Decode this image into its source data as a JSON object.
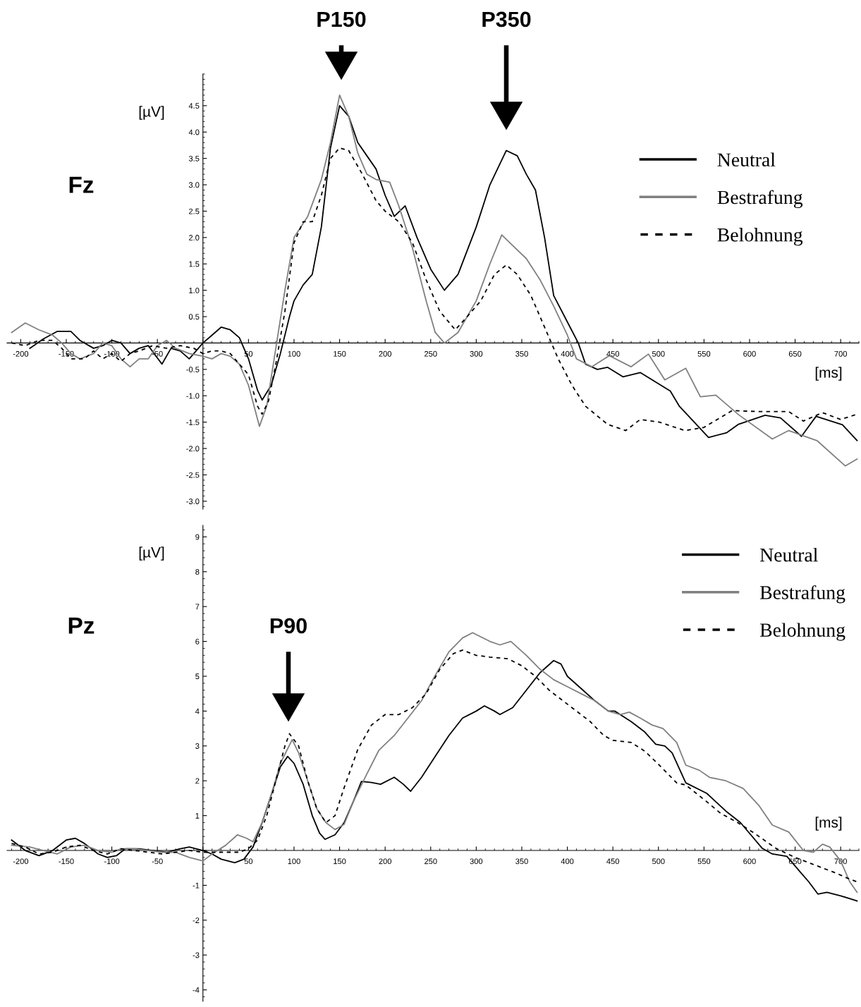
{
  "chart_data": [
    {
      "type": "line",
      "title": "Fz",
      "xlabel": "[ms]",
      "ylabel": "[µV]",
      "legend": "top right",
      "grid": false,
      "xlim": [
        -215,
        720
      ],
      "ylim": [
        -3.15,
        5.1
      ],
      "xticks": [
        -200,
        -150,
        -100,
        -50,
        {
          "value": 0,
          "label": null
        },
        50,
        100,
        150,
        200,
        250,
        300,
        350,
        400,
        450,
        500,
        550,
        600,
        650,
        700
      ],
      "yticks": [
        {
          "value": -3,
          "label": "-3.0"
        },
        -2.5,
        {
          "value": -2,
          "label": "-2.0"
        },
        -1.5,
        {
          "value": -1,
          "label": "-1.0"
        },
        -0.5,
        {
          "value": 0,
          "label": null
        },
        0.5,
        {
          "value": 1,
          "label": "1.0"
        },
        1.5,
        {
          "value": 2,
          "label": "2.0"
        },
        2.5,
        {
          "value": 3,
          "label": "3.0"
        },
        3.5,
        {
          "value": 4,
          "label": "4.0"
        },
        4.5
      ],
      "annotations": [
        "P150",
        "P350"
      ],
      "series": [
        {
          "name": "Neutral",
          "color": "#000000",
          "line_style": "solid",
          "x": [
            -190,
            -175,
            -160,
            -145,
            -135,
            -120,
            -110,
            -100,
            -90,
            -80,
            -70,
            -60,
            -45,
            -35,
            -25,
            -15,
            0,
            10,
            20,
            30,
            40,
            50,
            60,
            65,
            75,
            85,
            95,
            100,
            110,
            120,
            130,
            140,
            150,
            160,
            170,
            190,
            200,
            210,
            222,
            235,
            250,
            265,
            280,
            300,
            315,
            333,
            345,
            355,
            365,
            375,
            385,
            400,
            412,
            420,
            433,
            444,
            461,
            480,
            513,
            523,
            555,
            575,
            588,
            617,
            634,
            657,
            673,
            702,
            718
          ],
          "values": [
            -0.1,
            0.08,
            0.22,
            0.22,
            0.05,
            -0.1,
            -0.05,
            0.05,
            0.0,
            -0.2,
            -0.1,
            -0.05,
            -0.4,
            -0.1,
            -0.15,
            -0.3,
            0.0,
            0.15,
            0.3,
            0.25,
            0.1,
            -0.3,
            -0.9,
            -1.08,
            -0.8,
            -0.2,
            0.5,
            0.8,
            1.1,
            1.3,
            2.2,
            3.7,
            4.5,
            4.3,
            3.8,
            3.3,
            2.8,
            2.4,
            2.6,
            2.0,
            1.4,
            1.0,
            1.3,
            2.2,
            3.0,
            3.65,
            3.55,
            3.2,
            2.9,
            2.0,
            0.9,
            0.4,
            0.0,
            -0.4,
            -0.5,
            -0.46,
            -0.64,
            -0.56,
            -0.91,
            -1.2,
            -1.79,
            -1.7,
            -1.54,
            -1.37,
            -1.42,
            -1.77,
            -1.39,
            -1.55,
            -1.85
          ]
        },
        {
          "name": "Bestrafung",
          "color": "#808080",
          "line_style": "solid",
          "x": [
            -210,
            -195,
            -180,
            -165,
            -155,
            -145,
            -135,
            -120,
            -110,
            -100,
            -90,
            -80,
            -70,
            -60,
            -50,
            -40,
            -30,
            -15,
            0,
            10,
            20,
            30,
            40,
            50,
            62,
            70,
            80,
            90,
            100,
            115,
            130,
            140,
            150,
            160,
            170,
            180,
            190,
            205,
            215,
            230,
            245,
            255,
            265,
            280,
            300,
            315,
            328,
            340,
            355,
            370,
            385,
            400,
            410,
            427,
            446,
            470,
            489,
            507,
            530,
            546,
            563,
            588,
            625,
            643,
            674,
            705,
            718
          ],
          "values": [
            0.2,
            0.38,
            0.25,
            0.15,
            0.0,
            -0.2,
            -0.3,
            -0.2,
            0.0,
            -0.05,
            -0.3,
            -0.45,
            -0.3,
            -0.3,
            -0.05,
            0.05,
            -0.1,
            -0.2,
            -0.25,
            -0.3,
            -0.2,
            -0.25,
            -0.4,
            -0.8,
            -1.58,
            -1.2,
            -0.1,
            1.0,
            2.0,
            2.4,
            3.1,
            3.8,
            4.7,
            4.3,
            3.6,
            3.2,
            3.1,
            3.05,
            2.6,
            1.8,
            0.8,
            0.2,
            0.0,
            0.2,
            0.8,
            1.5,
            2.05,
            1.85,
            1.6,
            1.2,
            0.7,
            0.15,
            -0.3,
            -0.45,
            -0.24,
            -0.45,
            -0.21,
            -0.7,
            -0.48,
            -1.02,
            -0.99,
            -1.36,
            -1.82,
            -1.66,
            -1.85,
            -2.33,
            -2.2
          ]
        },
        {
          "name": "Belohnung",
          "color": "#000000",
          "line_style": "dashed",
          "x": [
            -210,
            -195,
            -180,
            -165,
            -155,
            -145,
            -130,
            -120,
            -110,
            -100,
            -90,
            -80,
            -70,
            -55,
            -40,
            -25,
            -10,
            0,
            10,
            20,
            30,
            40,
            50,
            60,
            65,
            72,
            80,
            90,
            100,
            110,
            120,
            130,
            140,
            150,
            160,
            175,
            190,
            200,
            215,
            230,
            245,
            260,
            277,
            290,
            305,
            320,
            333,
            345,
            360,
            375,
            390,
            405,
            420,
            444,
            464,
            480,
            501,
            529,
            550,
            581,
            609,
            643,
            659,
            680,
            700,
            718
          ],
          "values": [
            0.0,
            -0.05,
            0.05,
            0.05,
            -0.1,
            -0.3,
            -0.3,
            -0.15,
            -0.3,
            -0.2,
            -0.35,
            -0.2,
            -0.15,
            -0.05,
            -0.1,
            -0.05,
            -0.1,
            -0.2,
            -0.15,
            -0.15,
            -0.2,
            -0.4,
            -0.6,
            -1.2,
            -1.35,
            -1.1,
            -0.4,
            0.6,
            1.9,
            2.3,
            2.3,
            2.8,
            3.5,
            3.7,
            3.65,
            3.2,
            2.7,
            2.5,
            2.3,
            1.9,
            1.2,
            0.6,
            0.25,
            0.5,
            0.8,
            1.3,
            1.48,
            1.3,
            0.9,
            0.3,
            -0.3,
            -0.8,
            -1.2,
            -1.54,
            -1.66,
            -1.45,
            -1.5,
            -1.66,
            -1.6,
            -1.28,
            -1.3,
            -1.3,
            -1.48,
            -1.32,
            -1.45,
            -1.35
          ]
        }
      ]
    },
    {
      "type": "line",
      "title": "Pz",
      "xlabel": "[ms]",
      "ylabel": "[µV]",
      "legend": "top right",
      "grid": false,
      "xlim": [
        -215,
        720
      ],
      "ylim": [
        -4.33,
        9.33
      ],
      "xticks": [
        -200,
        -150,
        -100,
        -50,
        {
          "value": 0,
          "label": null
        },
        50,
        100,
        150,
        200,
        250,
        300,
        350,
        400,
        450,
        500,
        550,
        600,
        650,
        700
      ],
      "yticks": [
        -4,
        -3,
        -2,
        -1,
        {
          "value": 0,
          "label": null
        },
        1,
        2,
        3,
        4,
        5,
        6,
        7,
        8,
        9
      ],
      "annotations": [
        "P90"
      ],
      "series": [
        {
          "name": "Neutral",
          "color": "#000000",
          "line_style": "solid",
          "x": [
            -210,
            -195,
            -180,
            -165,
            -150,
            -140,
            -130,
            -115,
            -105,
            -95,
            -85,
            -70,
            -55,
            -40,
            -25,
            -15,
            0,
            10,
            20,
            35,
            45,
            55,
            65,
            75,
            85,
            93,
            100,
            110,
            120,
            128,
            134,
            145,
            155,
            165,
            174,
            185,
            195,
            210,
            220,
            228,
            240,
            255,
            270,
            285,
            300,
            309,
            320,
            326,
            340,
            355,
            370,
            385,
            393,
            400,
            415,
            430,
            445,
            452,
            470,
            485,
            497,
            507,
            515,
            530,
            553,
            574,
            590,
            614,
            625,
            641,
            655,
            665,
            675,
            685,
            700,
            712,
            718
          ],
          "values": [
            0.3,
            0.0,
            -0.15,
            0.0,
            0.3,
            0.35,
            0.2,
            -0.1,
            -0.2,
            -0.15,
            0.05,
            0.05,
            0.0,
            -0.05,
            0.05,
            0.1,
            0.0,
            -0.1,
            -0.25,
            -0.35,
            -0.25,
            0.1,
            0.8,
            1.6,
            2.4,
            2.7,
            2.5,
            1.9,
            1.0,
            0.5,
            0.32,
            0.45,
            0.8,
            1.4,
            1.98,
            1.95,
            1.9,
            2.1,
            1.9,
            1.7,
            2.1,
            2.7,
            3.3,
            3.8,
            4.0,
            4.15,
            4.0,
            3.9,
            4.1,
            4.6,
            5.1,
            5.45,
            5.35,
            5.0,
            4.65,
            4.3,
            4.0,
            4.0,
            3.7,
            3.4,
            3.05,
            3.0,
            2.8,
            1.94,
            1.64,
            1.13,
            0.8,
            0.06,
            -0.1,
            -0.17,
            -0.6,
            -0.9,
            -1.25,
            -1.2,
            -1.3,
            -1.4,
            -1.45
          ]
        },
        {
          "name": "Bestrafung",
          "color": "#808080",
          "line_style": "solid",
          "x": [
            -210,
            -190,
            -175,
            -160,
            -145,
            -130,
            -115,
            -100,
            -90,
            -75,
            -60,
            -45,
            -30,
            -15,
            0,
            10,
            25,
            38,
            48,
            55,
            65,
            75,
            85,
            98,
            105,
            115,
            125,
            135,
            145,
            155,
            165,
            180,
            193,
            210,
            225,
            240,
            254,
            270,
            285,
            296,
            315,
            326,
            338,
            355,
            370,
            385,
            400,
            415,
            430,
            445,
            458,
            468,
            480,
            493,
            505,
            520,
            530,
            545,
            556,
            574,
            593,
            610,
            625,
            643,
            659,
            670,
            680,
            688,
            700,
            710,
            718
          ],
          "values": [
            0.15,
            0.1,
            0.0,
            -0.1,
            0.1,
            0.15,
            0.0,
            -0.05,
            0.05,
            0.05,
            0.0,
            -0.05,
            -0.05,
            -0.2,
            -0.3,
            -0.1,
            0.15,
            0.45,
            0.35,
            0.25,
            0.8,
            1.6,
            2.5,
            3.18,
            2.8,
            2.0,
            1.2,
            0.8,
            0.6,
            0.75,
            1.4,
            2.2,
            2.87,
            3.3,
            3.8,
            4.3,
            4.98,
            5.7,
            6.1,
            6.25,
            6.0,
            5.9,
            6.0,
            5.6,
            5.2,
            4.9,
            4.7,
            4.5,
            4.3,
            4.0,
            3.9,
            3.97,
            3.8,
            3.6,
            3.5,
            3.1,
            2.45,
            2.3,
            2.1,
            2.0,
            1.78,
            1.3,
            0.73,
            0.53,
            0.0,
            -0.05,
            0.18,
            0.1,
            -0.3,
            -0.9,
            -1.2
          ]
        },
        {
          "name": "Belohnung",
          "color": "#000000",
          "line_style": "dashed",
          "x": [
            -210,
            -195,
            -180,
            -165,
            -150,
            -135,
            -120,
            -105,
            -90,
            -75,
            -60,
            -45,
            -30,
            -15,
            0,
            10,
            25,
            40,
            50,
            60,
            70,
            80,
            90,
            95,
            105,
            115,
            125,
            135,
            145,
            155,
            170,
            185,
            200,
            215,
            230,
            245,
            260,
            275,
            285,
            300,
            315,
            335,
            350,
            365,
            380,
            395,
            410,
            425,
            440,
            450,
            470,
            485,
            499,
            520,
            530,
            553,
            568,
            587,
            605,
            629,
            650,
            665,
            680,
            695,
            708,
            718
          ],
          "values": [
            0.2,
            0.1,
            -0.1,
            -0.05,
            0.1,
            0.15,
            0.0,
            -0.1,
            0.05,
            0.0,
            -0.05,
            -0.1,
            -0.05,
            0.0,
            -0.05,
            -0.05,
            -0.05,
            -0.05,
            0.05,
            0.3,
            1.0,
            2.0,
            3.0,
            3.35,
            3.0,
            2.0,
            1.2,
            0.8,
            1.0,
            1.8,
            2.9,
            3.6,
            3.9,
            3.9,
            4.1,
            4.5,
            5.2,
            5.65,
            5.75,
            5.6,
            5.55,
            5.5,
            5.3,
            5.0,
            4.6,
            4.3,
            4.0,
            3.7,
            3.3,
            3.16,
            3.1,
            2.85,
            2.5,
            1.94,
            1.88,
            1.4,
            1.07,
            0.8,
            0.5,
            0.06,
            -0.2,
            -0.35,
            -0.5,
            -0.65,
            -0.8,
            -0.9
          ]
        }
      ]
    }
  ]
}
